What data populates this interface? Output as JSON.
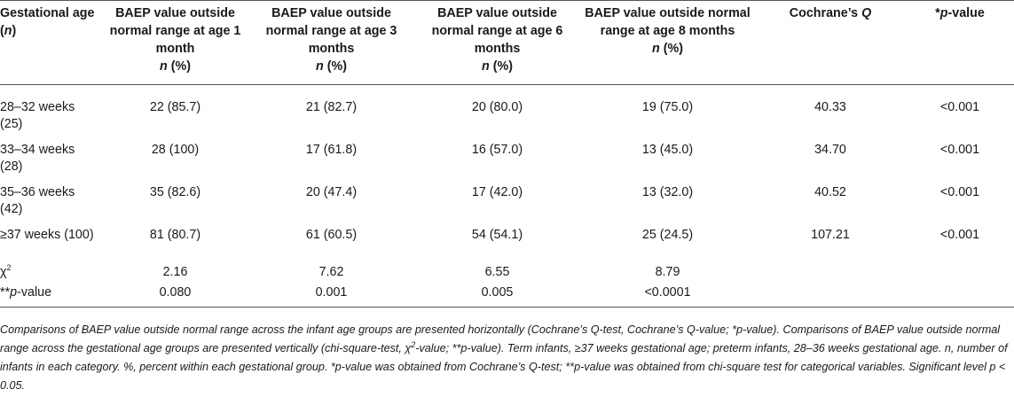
{
  "columns": [
    {
      "pre": "Gestational age (",
      "it": "n",
      "post": ")"
    },
    {
      "text": "BAEP value outside normal range at age 1 month",
      "n": "n",
      "pct": " (%)"
    },
    {
      "text": "BAEP value outside normal range at age 3 months",
      "n": "n",
      "pct": " (%)"
    },
    {
      "text": "BAEP value outside normal range at age 6 months",
      "n": "n",
      "pct": " (%)"
    },
    {
      "text": "BAEP value outside normal range at age 8 months",
      "n": "n",
      "pct": " (%)"
    },
    {
      "pre": "Cochrane’s ",
      "it": "Q",
      "post": ""
    },
    {
      "pre": "*",
      "it": "p",
      "post": "-value"
    }
  ],
  "rows": [
    {
      "label": "28–32 weeks (25)",
      "m1": "22 (85.7)",
      "m3": "21 (82.7)",
      "m6": "20 (80.0)",
      "m8": "19 (75.0)",
      "q": "40.33",
      "p": "<0.001"
    },
    {
      "label": "33–34 weeks (28)",
      "m1": "28 (100)",
      "m3": "17 (61.8)",
      "m6": "16 (57.0)",
      "m8": "13 (45.0)",
      "q": "34.70",
      "p": "<0.001"
    },
    {
      "label": "35–36 weeks (42)",
      "m1": "35 (82.6)",
      "m3": "20 (47.4)",
      "m6": "17 (42.0)",
      "m8": "13 (32.0)",
      "q": "40.52",
      "p": "<0.001"
    },
    {
      "label": "≥37 weeks (100)",
      "m1": "81 (80.7)",
      "m3": "61 (60.5)",
      "m6": "54 (54.1)",
      "m8": "25 (24.5)",
      "q": "107.21",
      "p": "<0.001"
    }
  ],
  "chi": {
    "label": "χ",
    "sup": "2",
    "m1": "2.16",
    "m3": "7.62",
    "m6": "6.55",
    "m8": "8.79"
  },
  "pval": {
    "pre": "**",
    "it": "p",
    "post": "-value",
    "m1": "0.080",
    "m3": "0.001",
    "m6": "0.005",
    "m8": "<0.0001"
  },
  "footnote": {
    "a": "Comparisons of BAEP value outside normal range across the infant age groups are presented horizontally (Cochrane’s Q-test, Cochrane’s Q-value; *p-value). Comparisons of BAEP value outside normal range across the gestational age groups are presented vertically (chi-square-test, χ",
    "sup": "2",
    "b": "-value; **p-value). Term infants, ≥37 weeks gestational age; preterm infants, 28–36 weeks gestational age. n, number of infants in each category. %, percent within each gestational group. *p-value was obtained from Cochrane’s Q-test; **p-value was obtained from chi-square test for categorical variables. Significant level p < 0.05."
  }
}
